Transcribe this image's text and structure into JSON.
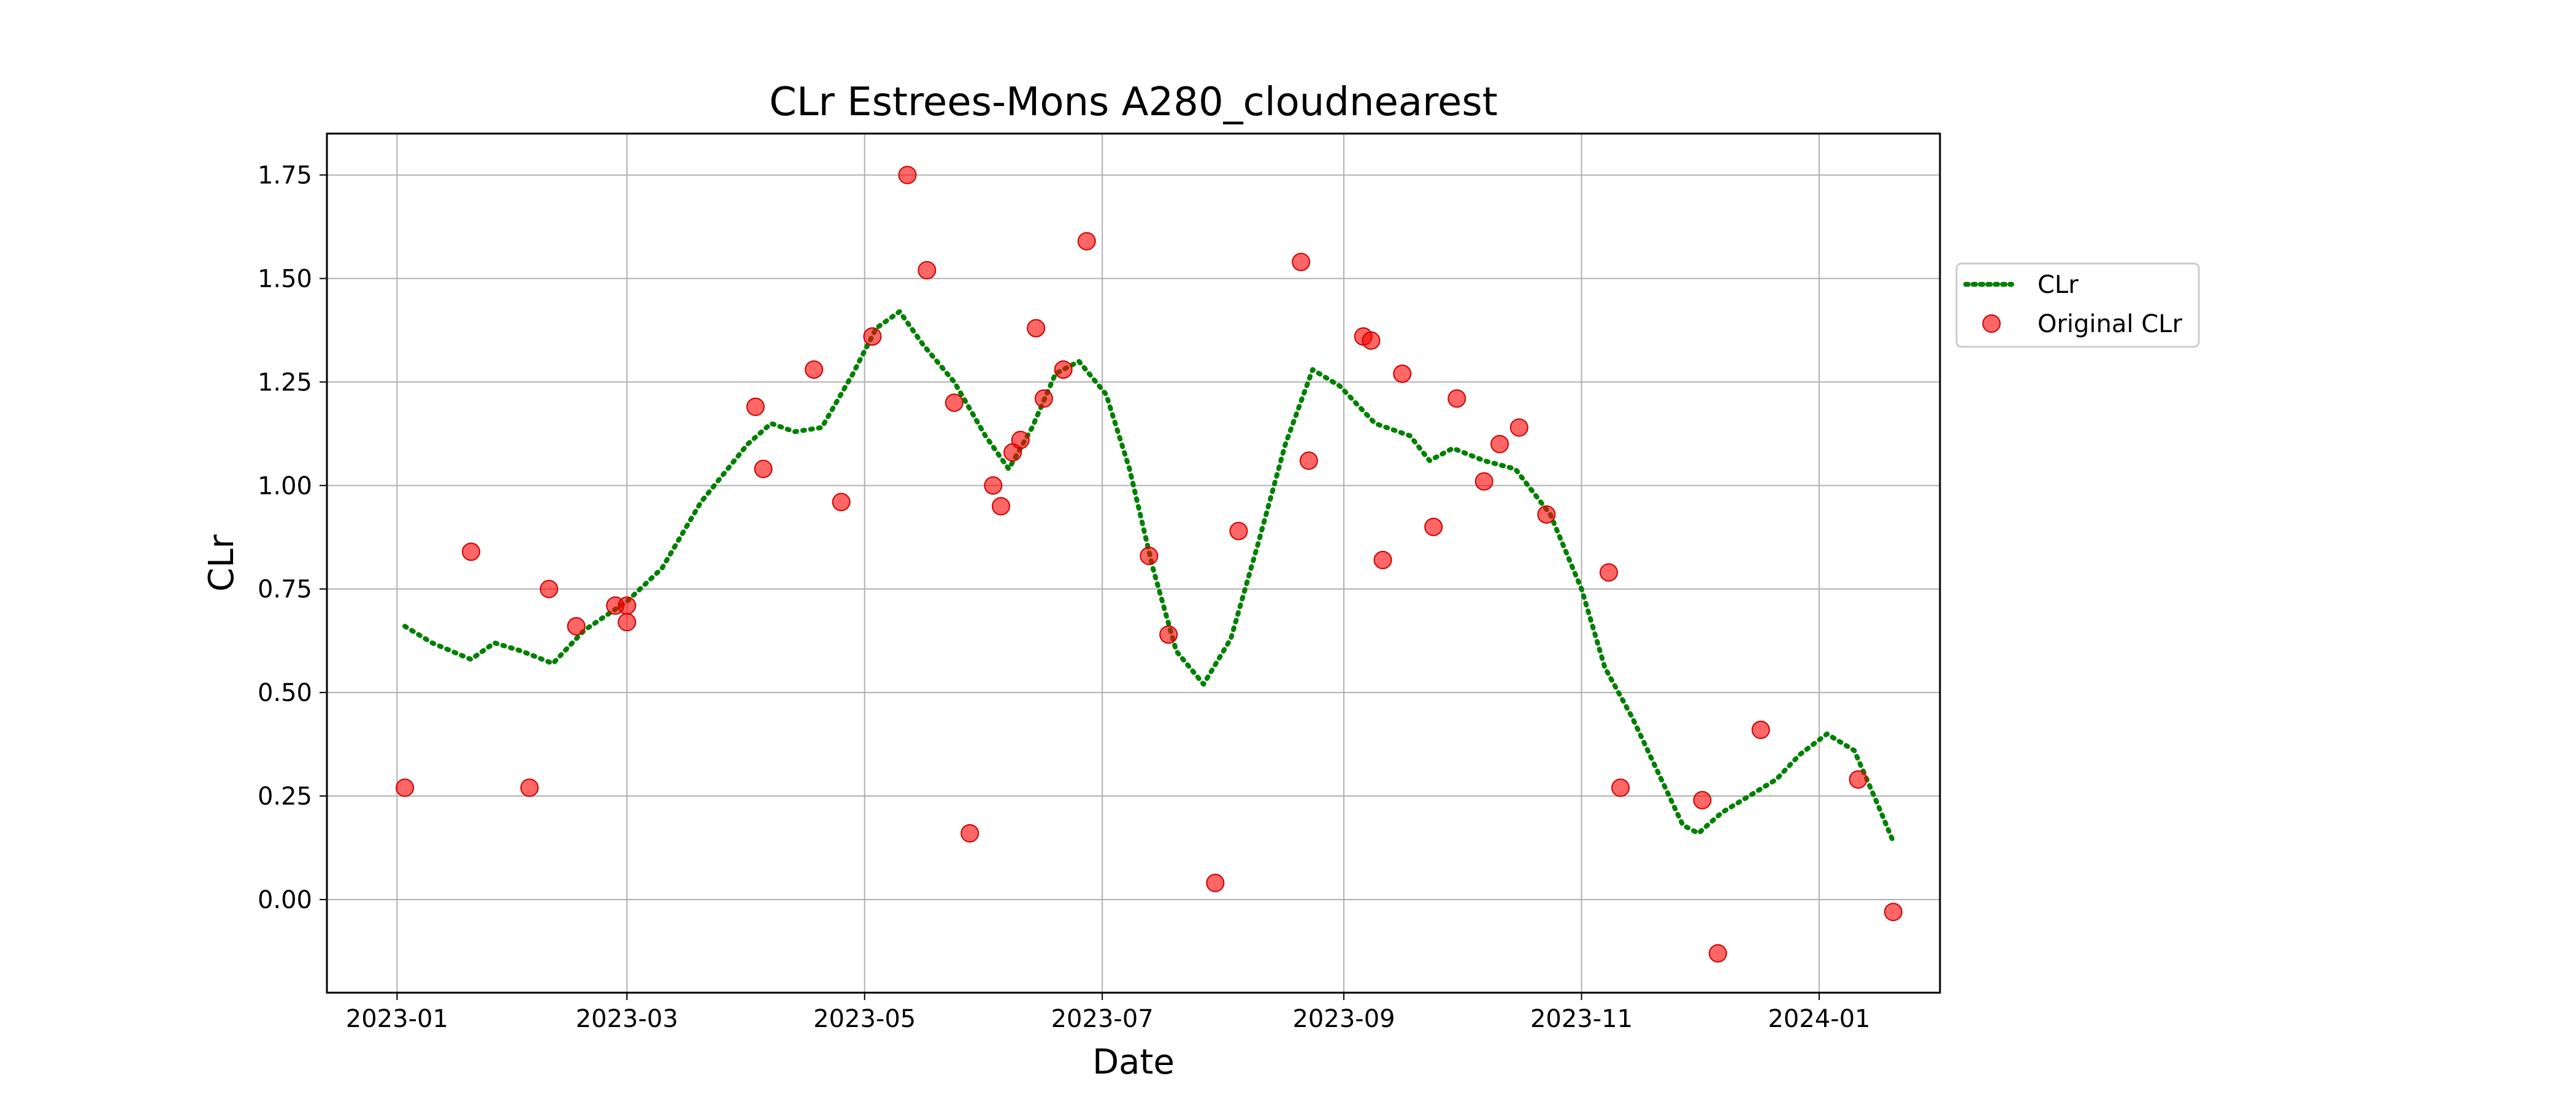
{
  "chart_data": {
    "type": "line+scatter",
    "title": "CLr Estrees-Mons A280_cloudnearest",
    "xlabel": "Date",
    "ylabel": "CLr",
    "xlim": [
      "2022-12-14",
      "2024-02-01"
    ],
    "ylim": [
      -0.225,
      1.85
    ],
    "grid": true,
    "legend_position": "outside-right",
    "x_ticks": [
      "2023-01",
      "2023-03",
      "2023-05",
      "2023-07",
      "2023-09",
      "2023-11",
      "2024-01"
    ],
    "y_ticks": [
      "0.00",
      "0.25",
      "0.50",
      "0.75",
      "1.00",
      "1.25",
      "1.50",
      "1.75"
    ],
    "series": [
      {
        "name": "CLr",
        "kind": "line",
        "style": "dotted",
        "color": "#008000",
        "points": [
          [
            "2023-01-03",
            0.66
          ],
          [
            "2023-01-10",
            0.62
          ],
          [
            "2023-01-20",
            0.58
          ],
          [
            "2023-01-26",
            0.62
          ],
          [
            "2023-02-02",
            0.6
          ],
          [
            "2023-02-10",
            0.57
          ],
          [
            "2023-02-18",
            0.65
          ],
          [
            "2023-03-01",
            0.72
          ],
          [
            "2023-03-10",
            0.8
          ],
          [
            "2023-03-20",
            0.96
          ],
          [
            "2023-04-01",
            1.1
          ],
          [
            "2023-04-07",
            1.15
          ],
          [
            "2023-04-13",
            1.13
          ],
          [
            "2023-04-20",
            1.14
          ],
          [
            "2023-04-28",
            1.27
          ],
          [
            "2023-05-04",
            1.38
          ],
          [
            "2023-05-10",
            1.42
          ],
          [
            "2023-05-16",
            1.34
          ],
          [
            "2023-05-24",
            1.25
          ],
          [
            "2023-06-01",
            1.12
          ],
          [
            "2023-06-07",
            1.04
          ],
          [
            "2023-06-13",
            1.14
          ],
          [
            "2023-06-19",
            1.27
          ],
          [
            "2023-06-25",
            1.3
          ],
          [
            "2023-07-02",
            1.22
          ],
          [
            "2023-07-08",
            1.04
          ],
          [
            "2023-07-14",
            0.8
          ],
          [
            "2023-07-20",
            0.6
          ],
          [
            "2023-07-27",
            0.52
          ],
          [
            "2023-08-03",
            0.63
          ],
          [
            "2023-08-10",
            0.86
          ],
          [
            "2023-08-17",
            1.1
          ],
          [
            "2023-08-24",
            1.28
          ],
          [
            "2023-08-31",
            1.24
          ],
          [
            "2023-09-09",
            1.15
          ],
          [
            "2023-09-18",
            1.12
          ],
          [
            "2023-09-23",
            1.06
          ],
          [
            "2023-09-29",
            1.09
          ],
          [
            "2023-10-07",
            1.06
          ],
          [
            "2023-10-15",
            1.04
          ],
          [
            "2023-10-24",
            0.93
          ],
          [
            "2023-11-01",
            0.75
          ],
          [
            "2023-11-07",
            0.56
          ],
          [
            "2023-11-14",
            0.44
          ],
          [
            "2023-11-21",
            0.3
          ],
          [
            "2023-11-27",
            0.18
          ],
          [
            "2023-12-01",
            0.16
          ],
          [
            "2023-12-07",
            0.21
          ],
          [
            "2023-12-14",
            0.25
          ],
          [
            "2023-12-21",
            0.29
          ],
          [
            "2023-12-27",
            0.35
          ],
          [
            "2024-01-03",
            0.4
          ],
          [
            "2024-01-10",
            0.36
          ],
          [
            "2024-01-16",
            0.23
          ],
          [
            "2024-01-20",
            0.14
          ]
        ]
      },
      {
        "name": "Original CLr",
        "kind": "scatter",
        "color": "#ff0000",
        "points": [
          [
            "2023-01-03",
            0.27
          ],
          [
            "2023-01-20",
            0.84
          ],
          [
            "2023-02-04",
            0.27
          ],
          [
            "2023-02-09",
            0.75
          ],
          [
            "2023-02-16",
            0.66
          ],
          [
            "2023-02-26",
            0.71
          ],
          [
            "2023-03-01",
            0.71
          ],
          [
            "2023-03-01",
            0.67
          ],
          [
            "2023-04-03",
            1.19
          ],
          [
            "2023-04-05",
            1.04
          ],
          [
            "2023-04-18",
            1.28
          ],
          [
            "2023-04-25",
            0.96
          ],
          [
            "2023-05-03",
            1.36
          ],
          [
            "2023-05-12",
            1.75
          ],
          [
            "2023-05-17",
            1.52
          ],
          [
            "2023-05-24",
            1.2
          ],
          [
            "2023-05-28",
            0.16
          ],
          [
            "2023-06-03",
            1.0
          ],
          [
            "2023-06-05",
            0.95
          ],
          [
            "2023-06-08",
            1.08
          ],
          [
            "2023-06-10",
            1.11
          ],
          [
            "2023-06-14",
            1.38
          ],
          [
            "2023-06-16",
            1.21
          ],
          [
            "2023-06-21",
            1.28
          ],
          [
            "2023-06-27",
            1.59
          ],
          [
            "2023-07-13",
            0.83
          ],
          [
            "2023-07-18",
            0.64
          ],
          [
            "2023-07-30",
            0.04
          ],
          [
            "2023-08-05",
            0.89
          ],
          [
            "2023-08-21",
            1.54
          ],
          [
            "2023-08-23",
            1.06
          ],
          [
            "2023-09-06",
            1.36
          ],
          [
            "2023-09-08",
            1.35
          ],
          [
            "2023-09-11",
            0.82
          ],
          [
            "2023-09-16",
            1.27
          ],
          [
            "2023-09-24",
            0.9
          ],
          [
            "2023-09-30",
            1.21
          ],
          [
            "2023-10-07",
            1.01
          ],
          [
            "2023-10-11",
            1.1
          ],
          [
            "2023-10-16",
            1.14
          ],
          [
            "2023-10-23",
            0.93
          ],
          [
            "2023-11-08",
            0.79
          ],
          [
            "2023-11-11",
            0.27
          ],
          [
            "2023-12-02",
            0.24
          ],
          [
            "2023-12-06",
            -0.13
          ],
          [
            "2023-12-17",
            0.41
          ],
          [
            "2024-01-11",
            0.29
          ],
          [
            "2024-01-20",
            -0.03
          ]
        ]
      }
    ]
  },
  "legend": {
    "items": [
      "CLr",
      "Original CLr"
    ]
  }
}
